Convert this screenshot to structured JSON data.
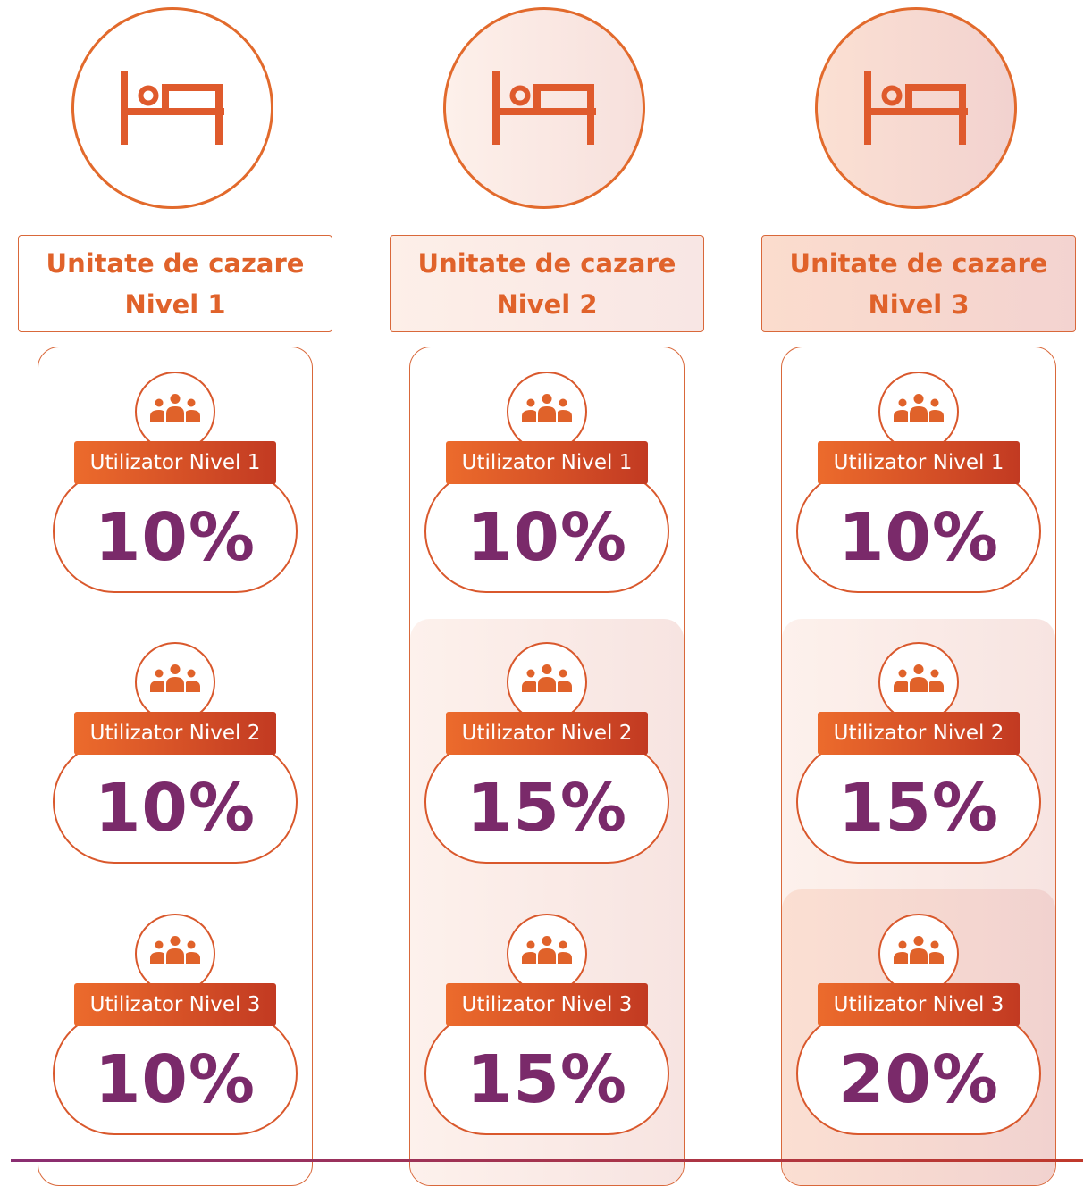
{
  "colors": {
    "accent_orange": "#e26a2c",
    "value_purple": "#7a2a6a",
    "tag_gradient_start": "#ec6b2c",
    "tag_gradient_end": "#c23a22"
  },
  "columns": [
    {
      "icon": "bed-icon",
      "title_line1": "Unitate de cazare",
      "title_line2": "Nivel 1",
      "tiers": [
        {
          "icon": "people-group-icon",
          "label": "Utilizator Nivel 1",
          "value": "10%"
        },
        {
          "icon": "people-group-icon",
          "label": "Utilizator Nivel 2",
          "value": "10%"
        },
        {
          "icon": "people-group-icon",
          "label": "Utilizator Nivel 3",
          "value": "10%"
        }
      ]
    },
    {
      "icon": "bed-icon",
      "title_line1": "Unitate de cazare",
      "title_line2": "Nivel 2",
      "tiers": [
        {
          "icon": "people-group-icon",
          "label": "Utilizator Nivel 1",
          "value": "10%"
        },
        {
          "icon": "people-group-icon",
          "label": "Utilizator Nivel 2",
          "value": "15%"
        },
        {
          "icon": "people-group-icon",
          "label": "Utilizator Nivel 3",
          "value": "15%"
        }
      ]
    },
    {
      "icon": "bed-icon",
      "title_line1": "Unitate de cazare",
      "title_line2": "Nivel 3",
      "tiers": [
        {
          "icon": "people-group-icon",
          "label": "Utilizator Nivel 1",
          "value": "10%"
        },
        {
          "icon": "people-group-icon",
          "label": "Utilizator Nivel 2",
          "value": "15%"
        },
        {
          "icon": "people-group-icon",
          "label": "Utilizator Nivel 3",
          "value": "20%"
        }
      ]
    }
  ]
}
